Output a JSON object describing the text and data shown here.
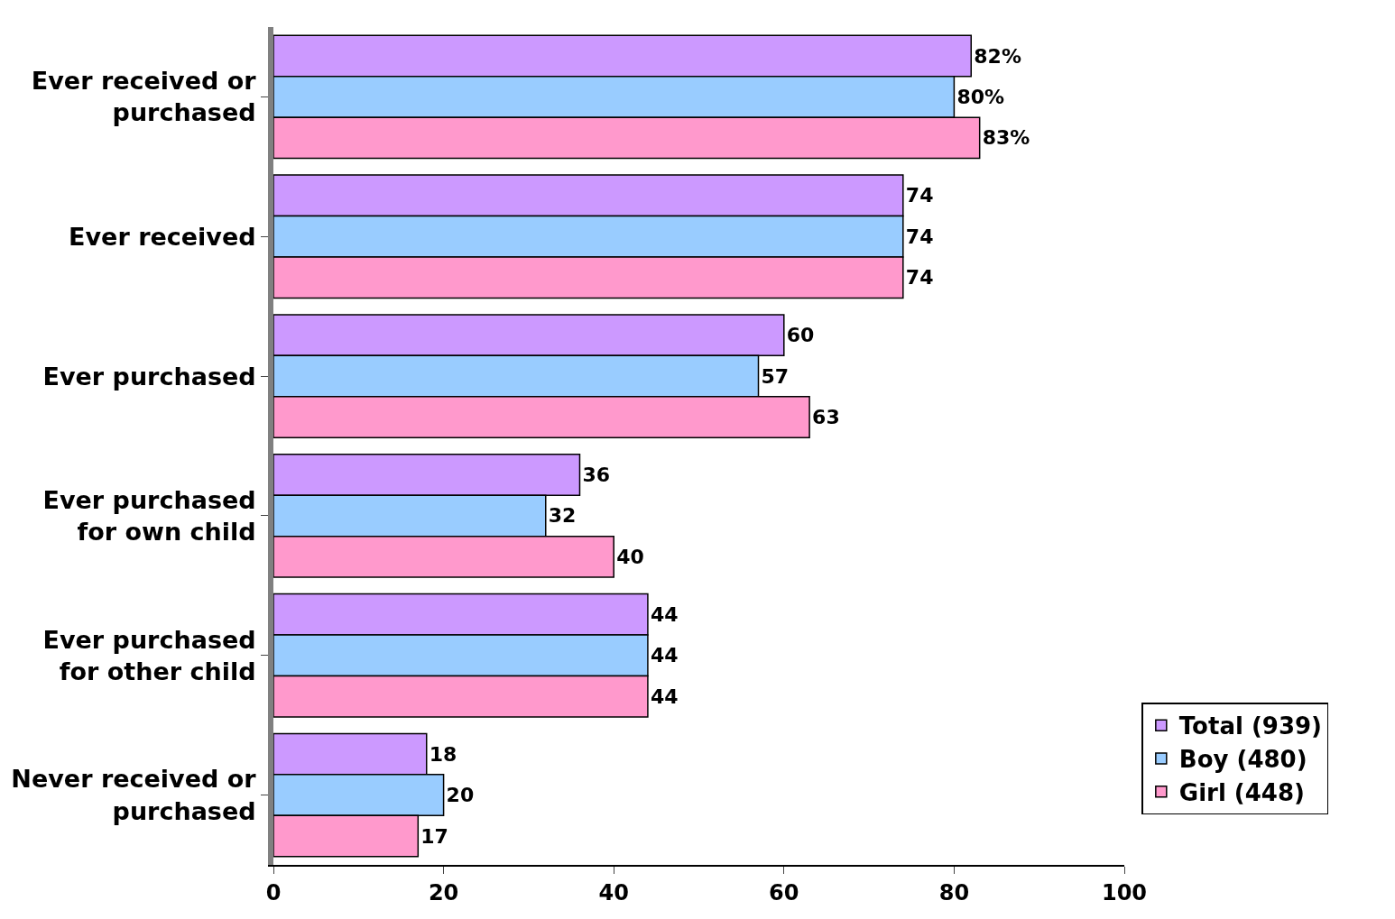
{
  "chart_data": {
    "type": "bar",
    "orientation": "horizontal",
    "categories": [
      "Ever received or purchased",
      "Ever received",
      "Ever purchased",
      "Ever purchased for own child",
      "Ever purchased for other child",
      "Never received or purchased"
    ],
    "series": [
      {
        "name": "Total (939)",
        "color": "#cc99ff",
        "values": [
          82,
          74,
          60,
          36,
          44,
          18
        ],
        "value_labels": [
          "82%",
          "74",
          "60",
          "36",
          "44",
          "18"
        ]
      },
      {
        "name": "Boy (480)",
        "color": "#99ccff",
        "values": [
          80,
          74,
          57,
          32,
          44,
          20
        ],
        "value_labels": [
          "80%",
          "74",
          "57",
          "32",
          "44",
          "20"
        ]
      },
      {
        "name": "Girl (448)",
        "color": "#ff99cc",
        "values": [
          83,
          74,
          63,
          40,
          44,
          17
        ],
        "value_labels": [
          "83%",
          "74",
          "63",
          "40",
          "44",
          "17"
        ]
      }
    ],
    "xlim": [
      0,
      100
    ],
    "xticks": [
      0,
      20,
      40,
      60,
      80,
      100
    ],
    "legend": "bottom right"
  }
}
